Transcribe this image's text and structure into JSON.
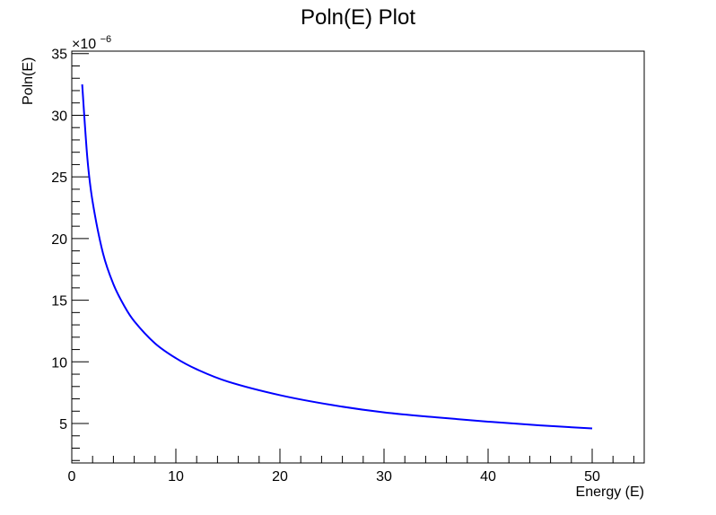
{
  "chart_data": {
    "type": "line",
    "title": "Poln(E) Plot",
    "xlabel": "Energy (E)",
    "ylabel": "Poln(E)",
    "y_multiplier": "×10",
    "y_multiplier_exponent": "−6",
    "xlim": [
      0,
      55
    ],
    "ylim": [
      1.8,
      35.2
    ],
    "x_ticks": [
      0,
      10,
      20,
      30,
      40,
      50
    ],
    "y_ticks": [
      5,
      10,
      15,
      20,
      25,
      30,
      35
    ],
    "grid": false,
    "series": [
      {
        "color": "#0000ff",
        "x": [
          1,
          1.5,
          2,
          3,
          4,
          5,
          6,
          8,
          10,
          12,
          15,
          20,
          25,
          30,
          35,
          40,
          45,
          50
        ],
        "y": [
          32.5,
          26.5,
          23.0,
          18.8,
          16.3,
          14.6,
          13.3,
          11.5,
          10.3,
          9.4,
          8.4,
          7.3,
          6.5,
          5.9,
          5.5,
          5.15,
          4.85,
          4.6
        ]
      }
    ]
  }
}
